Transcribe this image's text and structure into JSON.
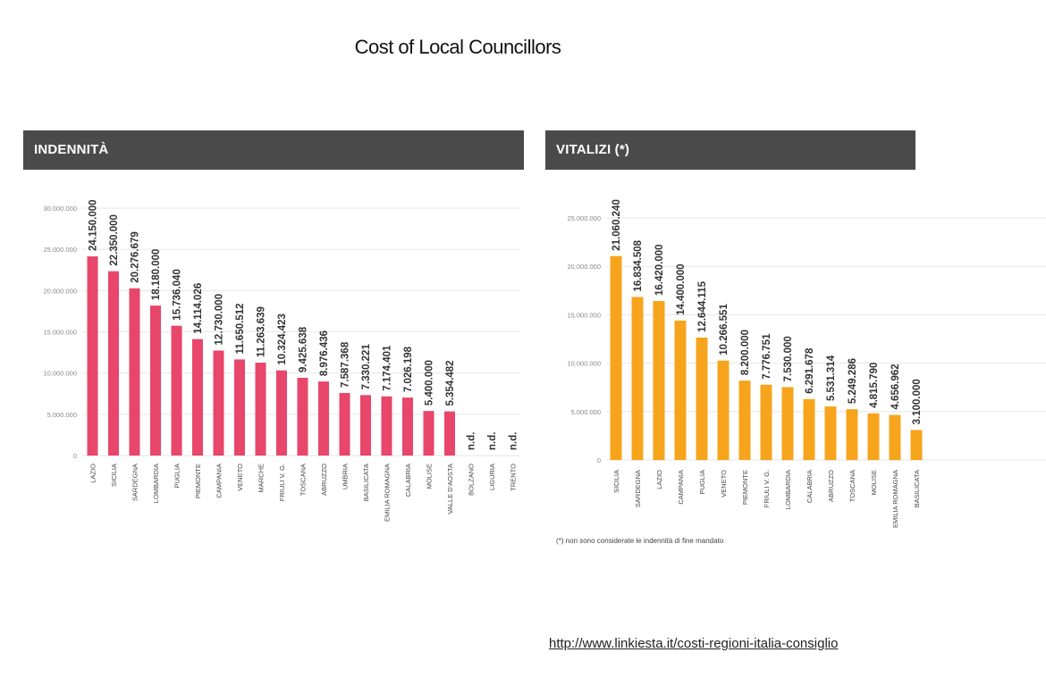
{
  "slide": {
    "title": "Cost of Local Councillors",
    "source_url": "http://www.linkiesta.it/costi-regioni-italia-consiglio"
  },
  "chart_data": [
    {
      "type": "bar",
      "title": "INDENNITÀ",
      "categories": [
        "LAZIO",
        "SICILIA",
        "SARDEGNA",
        "LOMBARDIA",
        "PUGLIA",
        "PIEMONTE",
        "CAMPANIA",
        "VENETO",
        "MARCHE",
        "FRIULI V. G.",
        "TOSCANA",
        "ABRUZZO",
        "UMBRIA",
        "BASILICATA",
        "EMILIA ROMAGNA",
        "CALABRIA",
        "MOLISE",
        "VALLE D'AOSTA",
        "BOLZANO",
        "LIGURIA",
        "TRENTO"
      ],
      "values": [
        24150000,
        22350000,
        20276679,
        18180000,
        15736040,
        14114026,
        12730000,
        11650512,
        11263639,
        10324423,
        9425638,
        8976436,
        7587368,
        7330221,
        7174401,
        7026198,
        5400000,
        5354482,
        null,
        null,
        null
      ],
      "value_labels": [
        "24.150.000",
        "22.350.000",
        "20.276.679",
        "18.180.000",
        "15.736.040",
        "14.114.026",
        "12.730.000",
        "11.650.512",
        "11.263.639",
        "10.324.423",
        "9.425.638",
        "8.976.436",
        "7.587.368",
        "7.330.221",
        "7.174.401",
        "7.026.198",
        "5.400.000",
        "5.354.482",
        "n.d.",
        "n.d.",
        "n.d."
      ],
      "y_ticks": [
        "0",
        "5.000.000",
        "10.000.000",
        "15.000.000",
        "20.000.000",
        "25.000.000",
        "30.000.000"
      ],
      "ylim": [
        0,
        30000000
      ],
      "grid": true,
      "bar_color": "#e8466a"
    },
    {
      "type": "bar",
      "title": "VITALIZI (*)",
      "categories": [
        "SICILIA",
        "SARDEGNA",
        "LAZIO",
        "CAMPANIA",
        "PUGLIA",
        "VENETO",
        "PIEMONTE",
        "FRIULI V. G.",
        "LOMBARDIA",
        "CALABRIA",
        "ABRUZZO",
        "TOSCANA",
        "MOLISE",
        "EMILIA ROMAGNA",
        "BASILICATA"
      ],
      "values": [
        21060240,
        16834508,
        16420000,
        14400000,
        12644115,
        10266551,
        8200000,
        7776751,
        7530000,
        6291678,
        5531314,
        5249286,
        4815790,
        4656962,
        3100000
      ],
      "value_labels": [
        "21.060.240",
        "16.834.508",
        "16.420.000",
        "14.400.000",
        "12.644.115",
        "10.266.551",
        "8.200.000",
        "7.776.751",
        "7.530.000",
        "6.291.678",
        "5.531.314",
        "5.249.286",
        "4.815.790",
        "4.656.962",
        "3.100.000"
      ],
      "y_ticks": [
        "0",
        "5.000.000",
        "10.000.000",
        "15.000.000",
        "20.000.000",
        "25.000.000"
      ],
      "ylim": [
        0,
        25000000
      ],
      "grid": true,
      "bar_color": "#f7a41d",
      "footnote": "(*) non sono considerate le indennità di fine mandato"
    }
  ]
}
